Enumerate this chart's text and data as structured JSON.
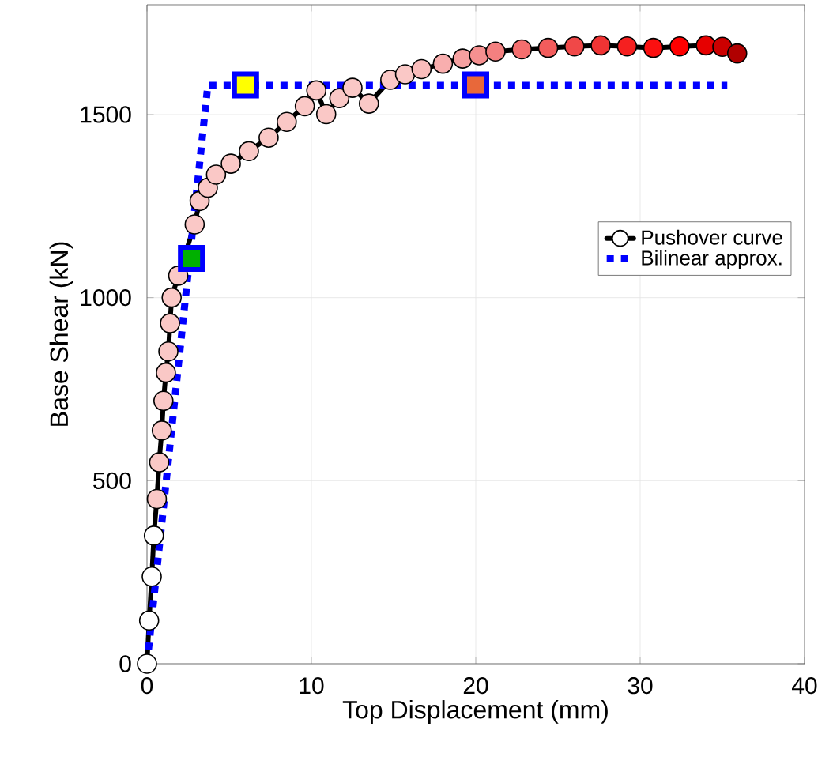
{
  "chart_data": {
    "type": "line",
    "xlabel": "Top Displacement (mm)",
    "ylabel": "Base Shear (kN)",
    "xlim": [
      0,
      40
    ],
    "ylim": [
      0,
      1800
    ],
    "xticks": [
      0,
      10,
      20,
      30,
      40
    ],
    "yticks": [
      0,
      500,
      1000,
      1500
    ],
    "grid": true,
    "legend": "right",
    "series": [
      {
        "name": "Pushover curve",
        "color": "#000000",
        "marker": "circle",
        "line_style": "solid",
        "x": [
          0,
          0.13,
          0.29,
          0.42,
          0.6,
          0.74,
          0.9,
          1.0,
          1.15,
          1.3,
          1.4,
          1.5,
          1.9,
          2.5,
          2.9,
          3.2,
          3.7,
          4.2,
          5.1,
          6.2,
          7.4,
          8.5,
          9.6,
          10.3,
          10.9,
          11.7,
          12.5,
          13.5,
          14.8,
          15.7,
          16.7,
          18,
          19.2,
          20.2,
          21.2,
          22.8,
          24.4,
          26,
          27.6,
          29.2,
          30.8,
          32.4,
          34,
          35,
          35.9
        ],
        "values": [
          0,
          118,
          238,
          350,
          450,
          550,
          637,
          718,
          795,
          853,
          930,
          1000,
          1060,
          null,
          1200,
          1264,
          1300,
          1336,
          1366,
          1400,
          1437,
          1480,
          1523,
          1566,
          1501,
          1545,
          1573,
          1530,
          1595,
          1610,
          1624,
          1639,
          1653,
          1662,
          1672,
          1678,
          1682,
          1686,
          1689,
          1686,
          1682,
          1686,
          1689,
          1685,
          1667
        ],
        "colors": [
          "#ffffff",
          "#ffffff",
          "#ffffff",
          "#ffffff",
          "#fac8c6",
          "#fac8c6",
          "#fac8c6",
          "#fac8c6",
          "#fac8c6",
          "#fac8c6",
          "#fac8c6",
          "#fac8c6",
          "#fac8c6",
          "#fac8c6",
          "#fac8c6",
          "#fac8c6",
          "#fac8c6",
          "#fac8c6",
          "#fac8c6",
          "#fac8c6",
          "#fac8c6",
          "#fac8c6",
          "#fac8c6",
          "#fac8c6",
          "#fac8c6",
          "#fac8c6",
          "#fac8c6",
          "#fac8c6",
          "#fac8c6",
          "#fac8c6",
          "#f9bcbb",
          "#f8aeae",
          "#f6a0a0",
          "#f59090",
          "#f48080",
          "#f46e6e",
          "#f25c5c",
          "#f04848",
          "#f03434",
          "#f52020",
          "#fb1010",
          "#ff0000",
          "#e60000",
          "#cc0000",
          "#b00000"
        ]
      },
      {
        "name": "Bilinear approx.",
        "type": "line",
        "color": "#0000ff",
        "marker": "none",
        "line_style": "dotted",
        "x": [
          0,
          3.7,
          35.3
        ],
        "values": [
          0,
          1580,
          1580
        ]
      },
      {
        "type": "scatter",
        "color": "#0000ff",
        "marker": "square",
        "x": [
          2.7,
          6.0,
          20.0
        ],
        "values": [
          1107,
          1581,
          1581
        ],
        "colors": [
          "#00b000",
          "#ffff00",
          "#e8683a"
        ]
      }
    ]
  }
}
